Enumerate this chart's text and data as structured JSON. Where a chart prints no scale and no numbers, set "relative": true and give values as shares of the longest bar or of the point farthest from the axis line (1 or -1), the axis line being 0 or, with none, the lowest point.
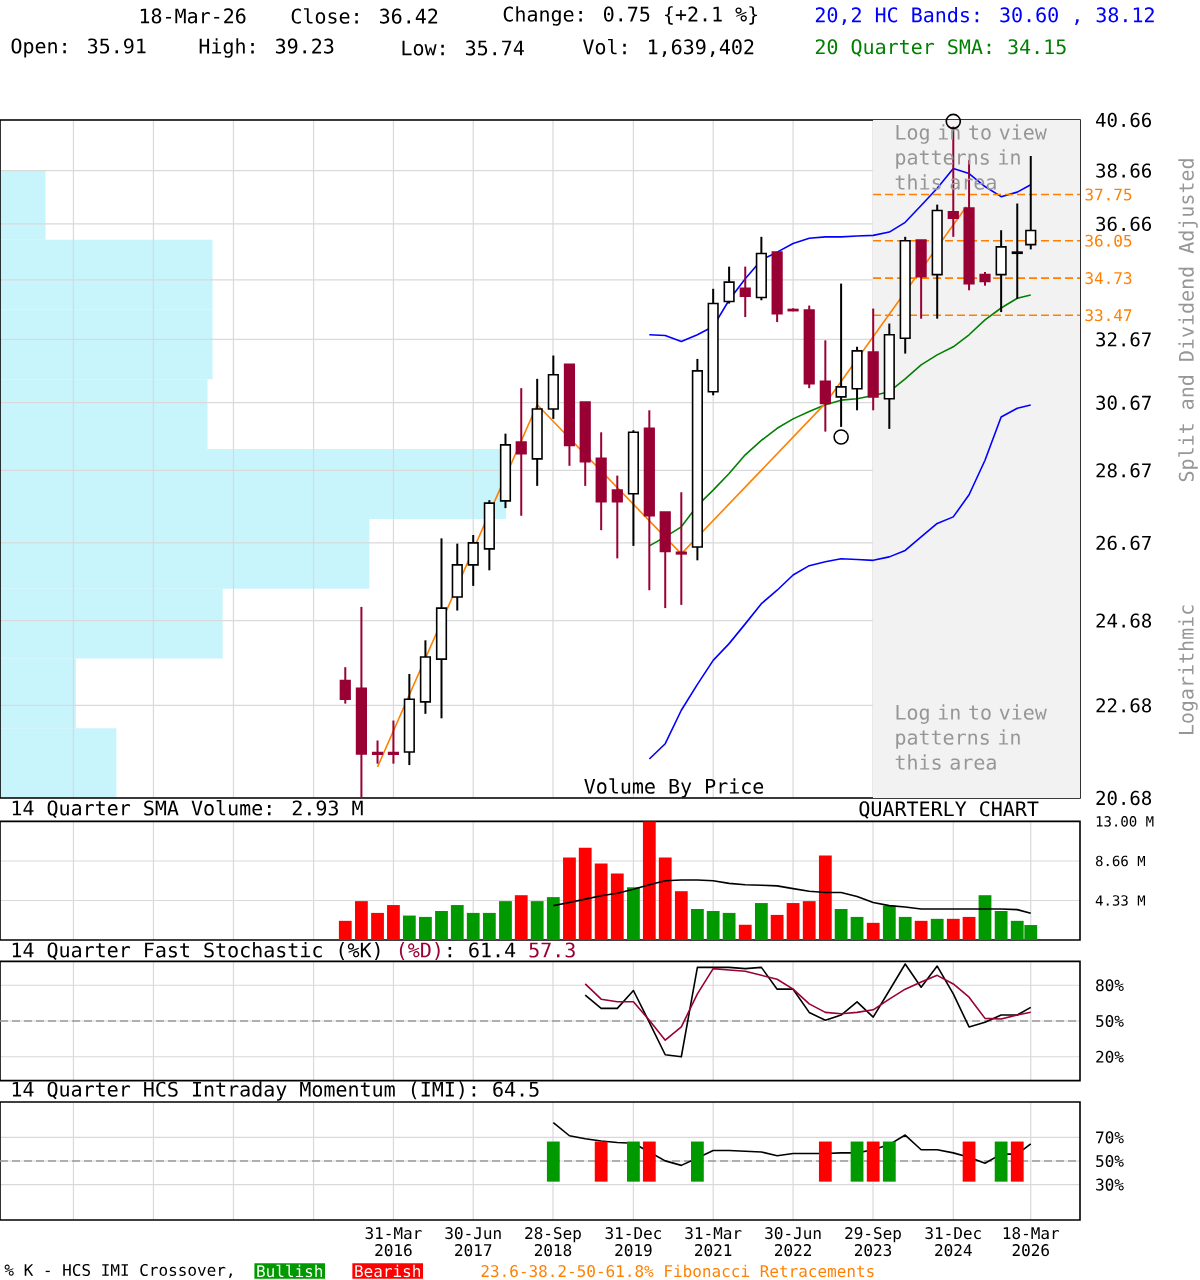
{
  "chart_data": [
    {
      "type": "candlestick",
      "x": [
        "2015-06-30",
        "2015-09-30",
        "2015-12-31",
        "2016-03-31",
        "2016-06-30",
        "2016-09-30",
        "2016-12-31",
        "2017-03-31",
        "2017-06-30",
        "2017-09-30",
        "2017-12-31",
        "2018-03-31",
        "2018-06-30",
        "2018-09-30",
        "2018-12-31",
        "2019-03-31",
        "2019-06-30",
        "2019-09-30",
        "2019-12-31",
        "2020-03-31",
        "2020-06-30",
        "2020-09-30",
        "2020-12-31",
        "2021-03-31",
        "2021-06-30",
        "2021-09-30",
        "2021-12-31",
        "2022-03-31",
        "2022-06-30",
        "2022-09-30",
        "2022-12-31",
        "2023-03-31",
        "2023-06-30",
        "2023-09-30",
        "2023-12-31",
        "2024-03-31",
        "2024-06-30",
        "2024-09-30",
        "2024-12-31",
        "2025-03-31",
        "2025-06-30",
        "2025-09-30",
        "2025-12-31",
        "2026-03-18"
      ],
      "ohlc": [
        [
          23.25,
          23.56,
          22.72,
          22.82
        ],
        [
          23.07,
          25.02,
          20.7,
          21.61
        ],
        [
          21.64,
          21.9,
          21.4,
          21.6
        ],
        [
          21.64,
          22.34,
          21.4,
          21.6
        ],
        [
          21.65,
          23.4,
          21.37,
          22.82
        ],
        [
          22.76,
          24.2,
          22.49,
          23.8
        ],
        [
          23.75,
          26.79,
          22.39,
          24.99
        ],
        [
          25.27,
          26.65,
          24.93,
          26.09
        ],
        [
          26.09,
          26.88,
          25.55,
          26.67
        ],
        [
          26.51,
          27.83,
          25.95,
          27.75
        ],
        [
          27.81,
          29.74,
          27.61,
          29.41
        ],
        [
          29.49,
          31.12,
          27.4,
          29.15
        ],
        [
          29.0,
          31.41,
          28.23,
          30.48
        ],
        [
          30.48,
          32.15,
          30.18,
          31.54
        ],
        [
          31.87,
          31.87,
          28.8,
          29.39
        ],
        [
          30.69,
          30.69,
          28.23,
          28.92
        ],
        [
          29.02,
          29.78,
          27.01,
          27.79
        ],
        [
          28.11,
          28.52,
          26.26,
          27.79
        ],
        [
          28.01,
          29.84,
          26.59,
          29.78
        ],
        [
          29.9,
          30.44,
          25.44,
          27.4
        ],
        [
          27.5,
          27.5,
          24.99,
          26.44
        ],
        [
          26.42,
          28.05,
          25.07,
          26.38
        ],
        [
          26.56,
          32.04,
          26.21,
          31.66
        ],
        [
          31.01,
          34.36,
          30.9,
          33.86
        ],
        [
          33.93,
          35.13,
          33.86,
          34.59
        ],
        [
          34.38,
          35.13,
          33.41,
          34.11
        ],
        [
          34.06,
          36.19,
          33.97,
          35.59
        ],
        [
          35.64,
          35.64,
          33.24,
          33.52
        ],
        [
          33.66,
          33.7,
          33.6,
          33.62
        ],
        [
          33.64,
          33.79,
          31.12,
          31.26
        ],
        [
          31.33,
          32.64,
          29.8,
          30.65
        ],
        [
          30.85,
          34.54,
          29.94,
          31.16
        ],
        [
          31.1,
          32.43,
          30.44,
          32.3
        ],
        [
          32.26,
          33.69,
          30.44,
          30.85
        ],
        [
          30.79,
          33.19,
          29.88,
          32.82
        ],
        [
          32.71,
          36.19,
          32.21,
          36.05
        ],
        [
          36.07,
          36.07,
          33.35,
          34.78
        ],
        [
          34.85,
          37.37,
          33.35,
          37.15
        ],
        [
          37.1,
          40.39,
          36.19,
          36.87
        ],
        [
          37.24,
          39.07,
          34.31,
          34.54
        ],
        [
          34.85,
          34.94,
          34.47,
          34.61
        ],
        [
          34.85,
          36.43,
          33.57,
          35.83
        ],
        [
          35.6,
          37.41,
          34.02,
          35.64
        ],
        [
          35.91,
          39.23,
          35.74,
          36.42
        ]
      ],
      "series": [
        {
          "type": "line",
          "color": "#0000ff",
          "x": [
            "2020-03-31",
            "2020-06-30",
            "2020-09-30",
            "2020-12-31",
            "2021-03-31",
            "2021-06-30",
            "2021-09-30",
            "2021-12-31",
            "2022-03-31",
            "2022-06-30",
            "2022-09-30",
            "2022-12-31",
            "2023-03-31",
            "2023-06-30",
            "2023-09-30",
            "2023-12-31",
            "2024-03-31",
            "2024-06-30",
            "2024-09-30",
            "2024-12-31",
            "2025-03-31",
            "2025-06-30",
            "2025-09-30",
            "2025-12-31",
            "2026-03-18"
          ],
          "values": [
            32.82,
            32.8,
            32.6,
            32.82,
            33.09,
            33.98,
            34.71,
            35.36,
            35.64,
            35.95,
            36.14,
            36.19,
            36.19,
            36.22,
            36.24,
            36.36,
            36.72,
            37.34,
            37.99,
            38.74,
            38.55,
            38.05,
            37.67,
            37.84,
            38.12
          ]
        },
        {
          "type": "line",
          "color": "#0000ff",
          "x": [
            "2020-03-31",
            "2020-06-30",
            "2020-09-30",
            "2020-12-31",
            "2021-03-31",
            "2021-06-30",
            "2021-09-30",
            "2021-12-31",
            "2022-03-31",
            "2022-06-30",
            "2022-09-30",
            "2022-12-31",
            "2023-03-31",
            "2023-06-30",
            "2023-09-30",
            "2023-12-31",
            "2024-03-31",
            "2024-06-30",
            "2024-09-30",
            "2024-12-31",
            "2025-03-31",
            "2025-06-30",
            "2025-09-30",
            "2025-12-31",
            "2026-03-18"
          ],
          "values": [
            21.5,
            21.83,
            22.57,
            23.16,
            23.72,
            24.12,
            24.6,
            25.1,
            25.44,
            25.83,
            26.07,
            26.17,
            26.25,
            26.23,
            26.21,
            26.3,
            26.47,
            26.83,
            27.19,
            27.37,
            27.98,
            28.96,
            30.24,
            30.5,
            30.6
          ]
        },
        {
          "type": "line",
          "color": "#008000",
          "x": [
            "2020-03-31",
            "2020-06-30",
            "2020-09-30",
            "2020-12-31",
            "2021-03-31",
            "2021-06-30",
            "2021-09-30",
            "2021-12-31",
            "2022-03-31",
            "2022-06-30",
            "2022-09-30",
            "2022-12-31",
            "2023-03-31",
            "2023-06-30",
            "2023-09-30",
            "2023-12-31",
            "2024-03-31",
            "2024-06-30",
            "2024-09-30",
            "2024-12-31",
            "2025-03-31",
            "2025-06-30",
            "2025-09-30",
            "2025-12-31",
            "2026-03-18"
          ],
          "values": [
            26.59,
            26.83,
            27.1,
            27.68,
            28.11,
            28.58,
            29.12,
            29.54,
            29.9,
            30.18,
            30.4,
            30.61,
            30.75,
            30.79,
            30.89,
            31.01,
            31.41,
            31.85,
            32.17,
            32.43,
            32.82,
            33.31,
            33.71,
            34.04,
            34.15
          ]
        },
        {
          "type": "line",
          "color": "#ff8000",
          "x": [
            "2015-12-31",
            "2018-06-30",
            "2020-09-30",
            "2022-12-31",
            "2025-03-15"
          ],
          "values": [
            21.33,
            30.61,
            26.38,
            30.65,
            37.29
          ]
        },
        {
          "type": "scatter",
          "marker": "circle",
          "color": "#000000",
          "x": [
            "2023-03-31",
            "2024-12-31"
          ],
          "values": [
            29.64,
            40.6
          ]
        }
      ],
      "xlim": [
        "2010-02-05",
        "2026-12-24"
      ],
      "xticks": [
        {
          "value": "2011-03-31",
          "label": null
        },
        {
          "value": "2012-06-30",
          "label": null
        },
        {
          "value": "2013-09-30",
          "label": null
        },
        {
          "value": "2014-12-31",
          "label": null
        },
        {
          "value": "2016-03-31",
          "label": null
        },
        {
          "value": "2017-06-30",
          "label": null
        },
        {
          "value": "2018-09-28",
          "label": null
        },
        {
          "value": "2019-12-31",
          "label": null
        },
        {
          "value": "2021-03-31",
          "label": null
        },
        {
          "value": "2022-06-30",
          "label": null
        },
        {
          "value": "2023-09-29",
          "label": null
        },
        {
          "value": "2024-12-31",
          "label": null
        },
        {
          "value": "2026-03-18",
          "label": null
        }
      ],
      "ylim": [
        20.68,
        40.66
      ],
      "yticks": [
        20.68,
        22.68,
        24.68,
        26.67,
        28.67,
        30.67,
        32.67,
        {
          "value": 34.67,
          "label": null
        },
        36.66,
        38.66,
        40.66
      ],
      "log": "y",
      "grid": true,
      "tick_labels": "y",
      "ylabel": "Split and Dividend Adjusted",
      "annotations": [
        "18-Mar-26",
        "Close: 36.42",
        "Change: 0.75 {+2.1 %}",
        "Open: 35.91",
        "High: 39.23",
        "Low: 35.74",
        "Vol: 1,639,402",
        "20,2 HC Bands: 30.60 , 38.12",
        "20 Quarter SMA: 34.15",
        "Log in to view patterns in this area",
        "Log in to view patterns in this area",
        "Logarithmic",
        "QUARTERLY CHART",
        "23.6-38.2-50-61.8% Fibonacci Retracements",
        "Volume By Price"
      ],
      "ref_lines": [
        {
          "axis": "y",
          "value": 37.75,
          "label": "37.75",
          "color": "#ff8000",
          "line_style": "dashed"
        },
        {
          "axis": "y",
          "value": 36.05,
          "label": "36.05",
          "color": "#ff8000",
          "line_style": "dashed"
        },
        {
          "axis": "y",
          "value": 34.73,
          "label": "34.73",
          "color": "#ff8000",
          "line_style": "dashed"
        },
        {
          "axis": "y",
          "value": 33.47,
          "label": "33.47",
          "color": "#ff8000",
          "line_style": "dashed"
        }
      ],
      "bands": [
        {
          "axis": "x",
          "from": "2023-09-29",
          "to": "2026-12-24",
          "color": "#f2f2f2"
        }
      ]
    },
    {
      "type": "bar",
      "orientation": "horizontal",
      "relative": true,
      "color": "#c8f4fc",
      "categories": [
        null,
        null,
        null,
        null,
        null,
        null,
        null,
        null,
        null
      ],
      "values": [
        0.09,
        0.42,
        0.42,
        0.41,
        1,
        0.73,
        0.44,
        0.15,
        0.23
      ]
    },
    {
      "type": "bar",
      "title": "14 Quarter SMA Volume: 2.93 M",
      "x": [
        "2015-06-30",
        "2015-09-30",
        "2015-12-31",
        "2016-03-31",
        "2016-06-30",
        "2016-09-30",
        "2016-12-31",
        "2017-03-31",
        "2017-06-30",
        "2017-09-30",
        "2017-12-31",
        "2018-03-31",
        "2018-06-30",
        "2018-09-30",
        "2018-12-31",
        "2019-03-31",
        "2019-06-30",
        "2019-09-30",
        "2019-12-31",
        "2020-03-31",
        "2020-06-30",
        "2020-09-30",
        "2020-12-31",
        "2021-03-31",
        "2021-06-30",
        "2021-09-30",
        "2021-12-31",
        "2022-03-31",
        "2022-06-30",
        "2022-09-30",
        "2022-12-31",
        "2023-03-31",
        "2023-06-30",
        "2023-09-30",
        "2023-12-31",
        "2024-03-31",
        "2024-06-30",
        "2024-09-30",
        "2024-12-31",
        "2025-03-31",
        "2025-06-30",
        "2025-09-30",
        "2025-12-31",
        "2026-03-18"
      ],
      "series": [
        {
          "values": [
            2.1,
            4.26,
            2.97,
            3.83,
            2.68,
            2.53,
            3.18,
            3.83,
            2.97,
            2.97,
            4.26,
            4.91,
            4.26,
            4.7,
            9.03,
            10.11,
            8.38,
            7.3,
            5.78,
            13.0,
            9.03,
            5.35,
            3.4,
            3.18,
            2.97,
            1.67,
            4.05,
            2.75,
            4.05,
            4.26,
            9.25,
            3.4,
            2.53,
            1.88,
            3.77,
            2.53,
            2.1,
            2.32,
            2.32,
            2.53,
            4.91,
            3.18,
            2.1,
            1.64
          ],
          "colors": [
            "#ff0000",
            "#ff0000",
            "#ff0000",
            "#ff0000",
            "#009900",
            "#009900",
            "#009900",
            "#009900",
            "#009900",
            "#009900",
            "#009900",
            "#ff0000",
            "#009900",
            "#009900",
            "#ff0000",
            "#ff0000",
            "#ff0000",
            "#ff0000",
            "#009900",
            "#ff0000",
            "#ff0000",
            "#ff0000",
            "#009900",
            "#009900",
            "#009900",
            "#ff0000",
            "#009900",
            "#ff0000",
            "#ff0000",
            "#ff0000",
            "#ff0000",
            "#009900",
            "#009900",
            "#ff0000",
            "#009900",
            "#009900",
            "#ff0000",
            "#009900",
            "#ff0000",
            "#ff0000",
            "#009900",
            "#009900",
            "#009900",
            "#009900"
          ]
        },
        {
          "type": "line",
          "color": "#000000",
          "x": [
            "2018-09-30",
            "2018-12-31",
            "2019-03-31",
            "2019-06-30",
            "2019-09-30",
            "2019-12-31",
            "2020-03-31",
            "2020-06-30",
            "2020-09-30",
            "2020-12-31",
            "2021-03-31",
            "2021-06-30",
            "2021-09-30",
            "2021-12-31",
            "2022-03-31",
            "2022-06-30",
            "2022-09-30",
            "2022-12-31",
            "2023-03-31",
            "2023-06-30",
            "2023-09-30",
            "2023-12-31",
            "2024-03-31",
            "2024-06-30",
            "2024-09-30",
            "2024-12-31",
            "2025-03-31",
            "2025-06-30",
            "2025-09-30",
            "2025-12-31",
            "2026-03-18"
          ],
          "values": [
            3.77,
            4.11,
            4.48,
            4.85,
            5.13,
            5.56,
            6.06,
            6.5,
            6.58,
            6.58,
            6.5,
            6.21,
            6.06,
            6.0,
            5.93,
            5.63,
            5.35,
            5.2,
            5.2,
            4.76,
            4.11,
            3.77,
            3.62,
            3.4,
            3.4,
            3.4,
            3.4,
            3.4,
            3.4,
            3.33,
            2.93
          ]
        }
      ],
      "xlim": [
        "2010-02-05",
        "2026-12-24"
      ],
      "xticks": [
        {
          "value": "2011-03-31",
          "label": null
        },
        {
          "value": "2012-06-30",
          "label": null
        },
        {
          "value": "2013-09-30",
          "label": null
        },
        {
          "value": "2014-12-31",
          "label": null
        },
        {
          "value": "2016-03-31",
          "label": null
        },
        {
          "value": "2017-06-30",
          "label": null
        },
        {
          "value": "2018-09-28",
          "label": null
        },
        {
          "value": "2019-12-31",
          "label": null
        },
        {
          "value": "2021-03-31",
          "label": null
        },
        {
          "value": "2022-06-30",
          "label": null
        },
        {
          "value": "2023-09-29",
          "label": null
        },
        {
          "value": "2024-12-31",
          "label": null
        },
        {
          "value": "2026-03-18",
          "label": null
        }
      ],
      "ylim": [
        0,
        13
      ],
      "yticks": [
        {
          "value": 4.33,
          "label": "4.33 M"
        },
        {
          "value": 8.66,
          "label": "8.66 M"
        },
        {
          "value": 13,
          "label": "13.00 M"
        }
      ],
      "grid": true,
      "tick_labels": "y"
    },
    {
      "type": "line",
      "title": "14 Quarter Fast Stochastic (%K)",
      "annotations": [
        "(%D)",
        ": 61.4",
        "57.3"
      ],
      "series": [
        {
          "color": "#000000",
          "x": [
            "2019-03-31",
            "2019-06-30",
            "2019-09-30",
            "2019-12-31",
            "2020-03-31",
            "2020-06-30",
            "2020-09-30",
            "2020-12-31",
            "2021-03-31",
            "2021-06-30",
            "2021-09-30",
            "2021-12-31",
            "2022-03-31",
            "2022-06-30",
            "2022-09-30",
            "2022-12-31",
            "2023-03-31",
            "2023-06-30",
            "2023-09-30",
            "2023-12-31",
            "2024-03-31",
            "2024-06-30",
            "2024-09-30",
            "2024-12-31",
            "2025-03-31",
            "2025-06-30",
            "2025-09-30",
            "2025-12-31",
            "2026-03-18"
          ],
          "values": [
            71.7,
            60.6,
            60.6,
            75.6,
            48.9,
            21.7,
            20.0,
            95.0,
            95.0,
            95.0,
            93.9,
            95.0,
            76.7,
            76.7,
            57.2,
            50.6,
            55.0,
            66.1,
            53.3,
            75.6,
            97.8,
            78.3,
            96.1,
            72.8,
            45.0,
            48.9,
            55.0,
            55.0,
            61.4
          ]
        },
        {
          "color": "#990033",
          "x": [
            "2019-03-31",
            "2019-06-30",
            "2019-09-30",
            "2019-12-31",
            "2020-03-31",
            "2020-06-30",
            "2020-09-30",
            "2020-12-31",
            "2021-03-31",
            "2021-06-30",
            "2021-09-30",
            "2021-12-31",
            "2022-03-31",
            "2022-06-30",
            "2022-09-30",
            "2022-12-31",
            "2023-03-31",
            "2023-06-30",
            "2023-09-30",
            "2023-12-31",
            "2024-03-31",
            "2024-06-30",
            "2024-09-30",
            "2024-12-31",
            "2025-03-31",
            "2025-06-30",
            "2025-09-30",
            "2025-12-31",
            "2026-03-18"
          ],
          "values": [
            81.1,
            68.3,
            66.1,
            66.1,
            50.6,
            33.9,
            45.0,
            72.8,
            93.9,
            92.8,
            91.7,
            88.3,
            85.0,
            76.7,
            64.4,
            57.2,
            56.1,
            57.2,
            59.4,
            68.3,
            76.7,
            82.8,
            88.3,
            81.1,
            70.0,
            52.2,
            51.7,
            55.0,
            57.3
          ]
        }
      ],
      "xlim": [
        "2010-02-05",
        "2026-12-24"
      ],
      "xticks": [
        {
          "value": "2011-03-31",
          "label": null
        },
        {
          "value": "2012-06-30",
          "label": null
        },
        {
          "value": "2013-09-30",
          "label": null
        },
        {
          "value": "2014-12-31",
          "label": null
        },
        {
          "value": "2016-03-31",
          "label": null
        },
        {
          "value": "2017-06-30",
          "label": null
        },
        {
          "value": "2018-09-28",
          "label": null
        },
        {
          "value": "2019-12-31",
          "label": null
        },
        {
          "value": "2021-03-31",
          "label": null
        },
        {
          "value": "2022-06-30",
          "label": null
        },
        {
          "value": "2023-09-29",
          "label": null
        },
        {
          "value": "2024-12-31",
          "label": null
        },
        {
          "value": "2026-03-18",
          "label": null
        }
      ],
      "ylim": [
        0,
        100
      ],
      "yticks": [
        {
          "value": 20,
          "label": "20%"
        },
        {
          "value": 50,
          "label": "50%"
        },
        {
          "value": 80,
          "label": "80%"
        }
      ],
      "ref_lines": [
        {
          "axis": "y",
          "value": 50,
          "color": "#999999",
          "line_style": "dashed"
        }
      ],
      "grid": true,
      "tick_labels": "y"
    },
    {
      "type": "line",
      "title": "14 Quarter HCS Intraday Momentum (IMI): 64.5",
      "legend": "bottom",
      "legend_title": "% K - HCS IMI Crossover,",
      "series": [
        {
          "color": "#000000",
          "x": [
            "2018-09-30",
            "2018-12-31",
            "2019-03-31",
            "2019-06-30",
            "2019-09-30",
            "2019-12-31",
            "2020-03-31",
            "2020-06-30",
            "2020-09-30",
            "2020-12-31",
            "2021-03-31",
            "2021-06-30",
            "2021-09-30",
            "2021-12-31",
            "2022-03-31",
            "2022-06-30",
            "2022-09-30",
            "2022-12-31",
            "2023-03-31",
            "2023-06-30",
            "2023-09-30",
            "2023-12-31",
            "2024-03-31",
            "2024-06-30",
            "2024-09-30",
            "2024-12-31",
            "2025-03-31",
            "2025-06-30",
            "2025-09-30",
            "2025-12-31",
            "2026-03-18"
          ],
          "values": [
            82.6,
            71.4,
            68.8,
            67.0,
            65.7,
            65.0,
            57.6,
            50.1,
            46.3,
            52.5,
            58.9,
            58.9,
            58.2,
            57.6,
            54.5,
            56.3,
            56.3,
            56.3,
            56.9,
            56.9,
            59.5,
            63.9,
            72.0,
            59.5,
            59.5,
            56.9,
            53.2,
            48.1,
            55.8,
            55.8,
            64.5
          ]
        },
        {
          "type": "bar",
          "name": "Bullish",
          "color": "#009900",
          "x": [
            "2018-09-30",
            "2019-12-31",
            "2020-12-31",
            "2023-06-30",
            "2023-12-31",
            "2025-09-30"
          ],
          "base": [
            32.5,
            32.5,
            32.5,
            32.5,
            32.5,
            32.5
          ],
          "values": [
            34,
            34,
            34,
            34,
            34,
            34
          ]
        },
        {
          "type": "bar",
          "name": "Bearish",
          "color": "#ff0000",
          "x": [
            "2019-06-30",
            "2020-03-31",
            "2022-12-31",
            "2023-09-30",
            "2025-03-31",
            "2025-12-31"
          ],
          "base": [
            32.5,
            32.5,
            32.5,
            32.5,
            32.5,
            32.5
          ],
          "values": [
            34,
            34,
            34,
            34,
            34,
            34
          ]
        }
      ],
      "xlim": [
        "2010-02-05",
        "2026-12-24"
      ],
      "xticks": [
        {
          "value": "2011-03-31",
          "label": null
        },
        {
          "value": "2012-06-30",
          "label": null
        },
        {
          "value": "2013-09-30",
          "label": null
        },
        {
          "value": "2014-12-31",
          "label": null
        },
        {
          "value": "2016-03-31",
          "label": "31-Mar 2016"
        },
        {
          "value": "2017-06-30",
          "label": "30-Jun 2017"
        },
        {
          "value": "2018-09-28",
          "label": "28-Sep 2018"
        },
        {
          "value": "2019-12-31",
          "label": "31-Dec 2019"
        },
        {
          "value": "2021-03-31",
          "label": "31-Mar 2021"
        },
        {
          "value": "2022-06-30",
          "label": "30-Jun 2022"
        },
        {
          "value": "2023-09-29",
          "label": "29-Sep 2023"
        },
        {
          "value": "2024-12-31",
          "label": "31-Dec 2024"
        },
        {
          "value": "2026-03-18",
          "label": "18-Mar 2026"
        }
      ],
      "ylim": [
        0,
        100
      ],
      "yticks": [
        {
          "value": 30,
          "label": "30%"
        },
        {
          "value": 50,
          "label": "50%"
        },
        {
          "value": 70,
          "label": "70%"
        }
      ],
      "ref_lines": [
        {
          "axis": "y",
          "value": 50,
          "color": "#999999",
          "line_style": "dashed"
        }
      ],
      "grid": true
    }
  ]
}
